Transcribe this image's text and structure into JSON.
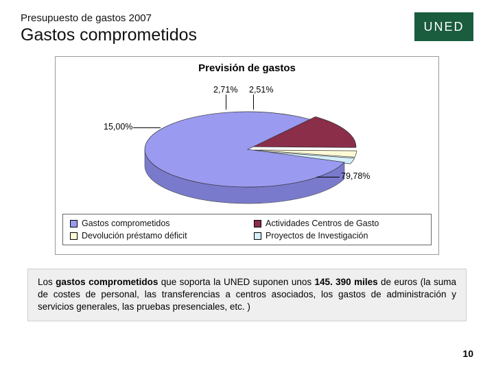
{
  "header": {
    "small_title": "Presupuesto de gastos 2007",
    "big_title": "Gastos comprometidos",
    "logo_text": "UNED",
    "logo_bg": "#1a5c3e",
    "logo_fg": "#ffffff"
  },
  "chart": {
    "type": "pie-3d",
    "title": "Previsión de gastos",
    "title_fontsize": 15,
    "background_color": "#ffffff",
    "border_color": "#999999",
    "label_fontsize": 12.5,
    "slices": [
      {
        "name": "Gastos comprometidos",
        "value": 79.78,
        "label": "79,78%",
        "color": "#9a9af0",
        "side_color": "#7a7acc"
      },
      {
        "name": "Actividades Centros de Gasto",
        "value": 15.0,
        "label": "15,00%",
        "color": "#8a2e4a",
        "side_color": "#6e2239"
      },
      {
        "name": "Devolución préstamo déficit",
        "value": 2.71,
        "label": "2,71%",
        "color": "#fefad6",
        "side_color": "#d8d4b0"
      },
      {
        "name": "Proyectos de Investigación",
        "value": 2.51,
        "label": "2,51%",
        "color": "#d4f0fa",
        "side_color": "#a8d0e0"
      }
    ],
    "legend": {
      "border_color": "#666666",
      "fontsize": 12.5,
      "items": [
        {
          "swatch": "#9a9af0",
          "text": "Gastos comprometidos"
        },
        {
          "swatch": "#8a2e4a",
          "text": "Actividades Centros de Gasto"
        },
        {
          "swatch": "#fefad6",
          "text": "Devolución préstamo déficit"
        },
        {
          "swatch": "#d4f0fa",
          "text": "Proyectos de Investigación"
        }
      ]
    }
  },
  "note": {
    "prefix": "Los ",
    "bold1": "gastos comprometidos",
    "mid": " que soporta la UNED suponen unos ",
    "bold2": "145. 390 miles",
    "suffix": " de euros (la suma de costes de personal, las transferencias a centros asociados, los gastos de  administración y servicios generales, las pruebas presenciales, etc. )",
    "bg": "#efefef",
    "border": "#cfcfcf",
    "fontsize": 13.5
  },
  "page_number": "10"
}
